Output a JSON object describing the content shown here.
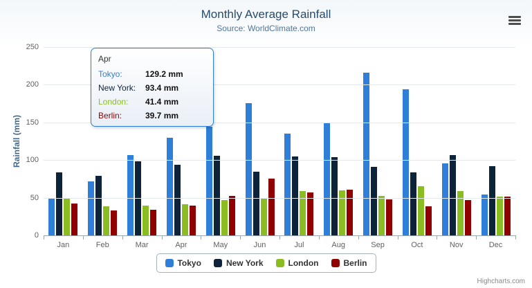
{
  "header": {
    "title": "Monthly Average Rainfall",
    "subtitle": "Source: WorldClimate.com"
  },
  "y_axis": {
    "title": "Rainfall (mm)"
  },
  "tooltip": {
    "header": "Apr",
    "border_color": "#2f7ed8",
    "rows": [
      {
        "label": "Tokyo:",
        "value": "129.2 mm",
        "color": "#2f7ed8"
      },
      {
        "label": "New York:",
        "value": "93.4 mm",
        "color": "#0d233a"
      },
      {
        "label": "London:",
        "value": "41.4 mm",
        "color": "#8bbc21"
      },
      {
        "label": "Berlin:",
        "value": "39.7 mm",
        "color": "#910000"
      }
    ]
  },
  "credits": "Highcharts.com",
  "icons": {
    "menu": "hamburger-menu-icon"
  },
  "chart_data": {
    "type": "bar",
    "title": "Monthly Average Rainfall",
    "subtitle": "Source: WorldClimate.com",
    "categories": [
      "Jan",
      "Feb",
      "Mar",
      "Apr",
      "May",
      "Jun",
      "Jul",
      "Aug",
      "Sep",
      "Oct",
      "Nov",
      "Dec"
    ],
    "series": [
      {
        "name": "Tokyo",
        "color": "#2f7ed8",
        "values": [
          49.9,
          71.5,
          106.4,
          129.2,
          144.0,
          176.0,
          135.6,
          148.5,
          216.4,
          194.1,
          95.6,
          54.4
        ]
      },
      {
        "name": "New York",
        "color": "#0d233a",
        "values": [
          83.6,
          78.8,
          98.5,
          93.4,
          106.0,
          84.5,
          105.0,
          104.3,
          91.2,
          83.5,
          106.6,
          92.3
        ]
      },
      {
        "name": "London",
        "color": "#8bbc21",
        "values": [
          48.9,
          38.8,
          39.3,
          41.4,
          47.0,
          48.3,
          59.0,
          59.6,
          52.4,
          65.2,
          59.3,
          51.2
        ]
      },
      {
        "name": "Berlin",
        "color": "#910000",
        "values": [
          42.4,
          33.2,
          34.5,
          39.7,
          52.6,
          75.5,
          57.4,
          60.4,
          47.6,
          39.1,
          46.8,
          51.1
        ]
      }
    ],
    "xlabel": "",
    "ylabel": "Rainfall (mm)",
    "ylim": [
      0,
      250
    ],
    "yticks": [
      0,
      50,
      100,
      150,
      200,
      250
    ],
    "grid": true,
    "legend_position": "bottom",
    "legend_items": [
      "Tokyo",
      "New York",
      "London",
      "Berlin"
    ],
    "unit_suffix": " mm"
  }
}
